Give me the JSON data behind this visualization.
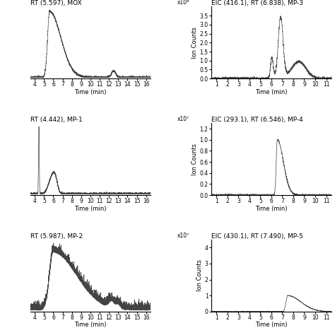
{
  "subplots": [
    {
      "title": "RT (5.597), MOX",
      "xlabel": "Time (min)",
      "xlim": [
        3.5,
        16.5
      ],
      "xticks": [
        4,
        5,
        6,
        7,
        8,
        9,
        10,
        11,
        12,
        13,
        14,
        15,
        16
      ],
      "has_ylabel": false,
      "scale_label": ""
    },
    {
      "title": "EIC (416.1), RT (6.838), MP-3",
      "xlabel": "Time (min)",
      "ylabel": "Ion Counts",
      "xlim": [
        0.5,
        11.5
      ],
      "xticks": [
        1,
        2,
        3,
        4,
        5,
        6,
        7,
        8,
        9,
        10,
        11
      ],
      "has_ylabel": true,
      "scale_label": "x10⁶",
      "ylim": [
        0,
        4.0
      ],
      "yticks": [
        0,
        0.5,
        1.0,
        1.5,
        2.0,
        2.5,
        3.0,
        3.5
      ]
    },
    {
      "title": "RT (4.442), MP-1",
      "xlabel": "Time (min)",
      "xlim": [
        3.5,
        16.5
      ],
      "xticks": [
        4,
        5,
        6,
        7,
        8,
        9,
        10,
        11,
        12,
        13,
        14,
        15,
        16
      ],
      "has_ylabel": false,
      "scale_label": ""
    },
    {
      "title": "EIC (293.1), RT (6.546), MP-4",
      "xlabel": "Time (min)",
      "ylabel": "Ion Counts",
      "xlim": [
        0.5,
        11.5
      ],
      "xticks": [
        1,
        2,
        3,
        4,
        5,
        6,
        7,
        8,
        9,
        10,
        11
      ],
      "has_ylabel": true,
      "scale_label": "x10⁷",
      "ylim": [
        0,
        1.3
      ],
      "yticks": [
        0,
        0.2,
        0.4,
        0.6,
        0.8,
        1.0,
        1.2
      ]
    },
    {
      "title": "RT (5.987), MP-2",
      "xlabel": "Time (min)",
      "xlim": [
        3.5,
        16.5
      ],
      "xticks": [
        4,
        5,
        6,
        7,
        8,
        9,
        10,
        11,
        12,
        13,
        14,
        15,
        16
      ],
      "has_ylabel": false,
      "scale_label": ""
    },
    {
      "title": "EIC (430.1), RT (7.490), MP-5",
      "xlabel": "Time (min)",
      "ylabel": "Ion Counts",
      "xlim": [
        0.5,
        11.5
      ],
      "xticks": [
        1,
        2,
        3,
        4,
        5,
        6,
        7,
        8,
        9,
        10,
        11
      ],
      "has_ylabel": true,
      "scale_label": "x10⁷",
      "ylim": [
        0,
        4.5
      ],
      "yticks": [
        0,
        1,
        2,
        3,
        4
      ]
    }
  ],
  "line_color": "#444444",
  "bg_color": "#ffffff",
  "fontsize_title": 6.5,
  "fontsize_axis": 6,
  "fontsize_tick": 5.5
}
